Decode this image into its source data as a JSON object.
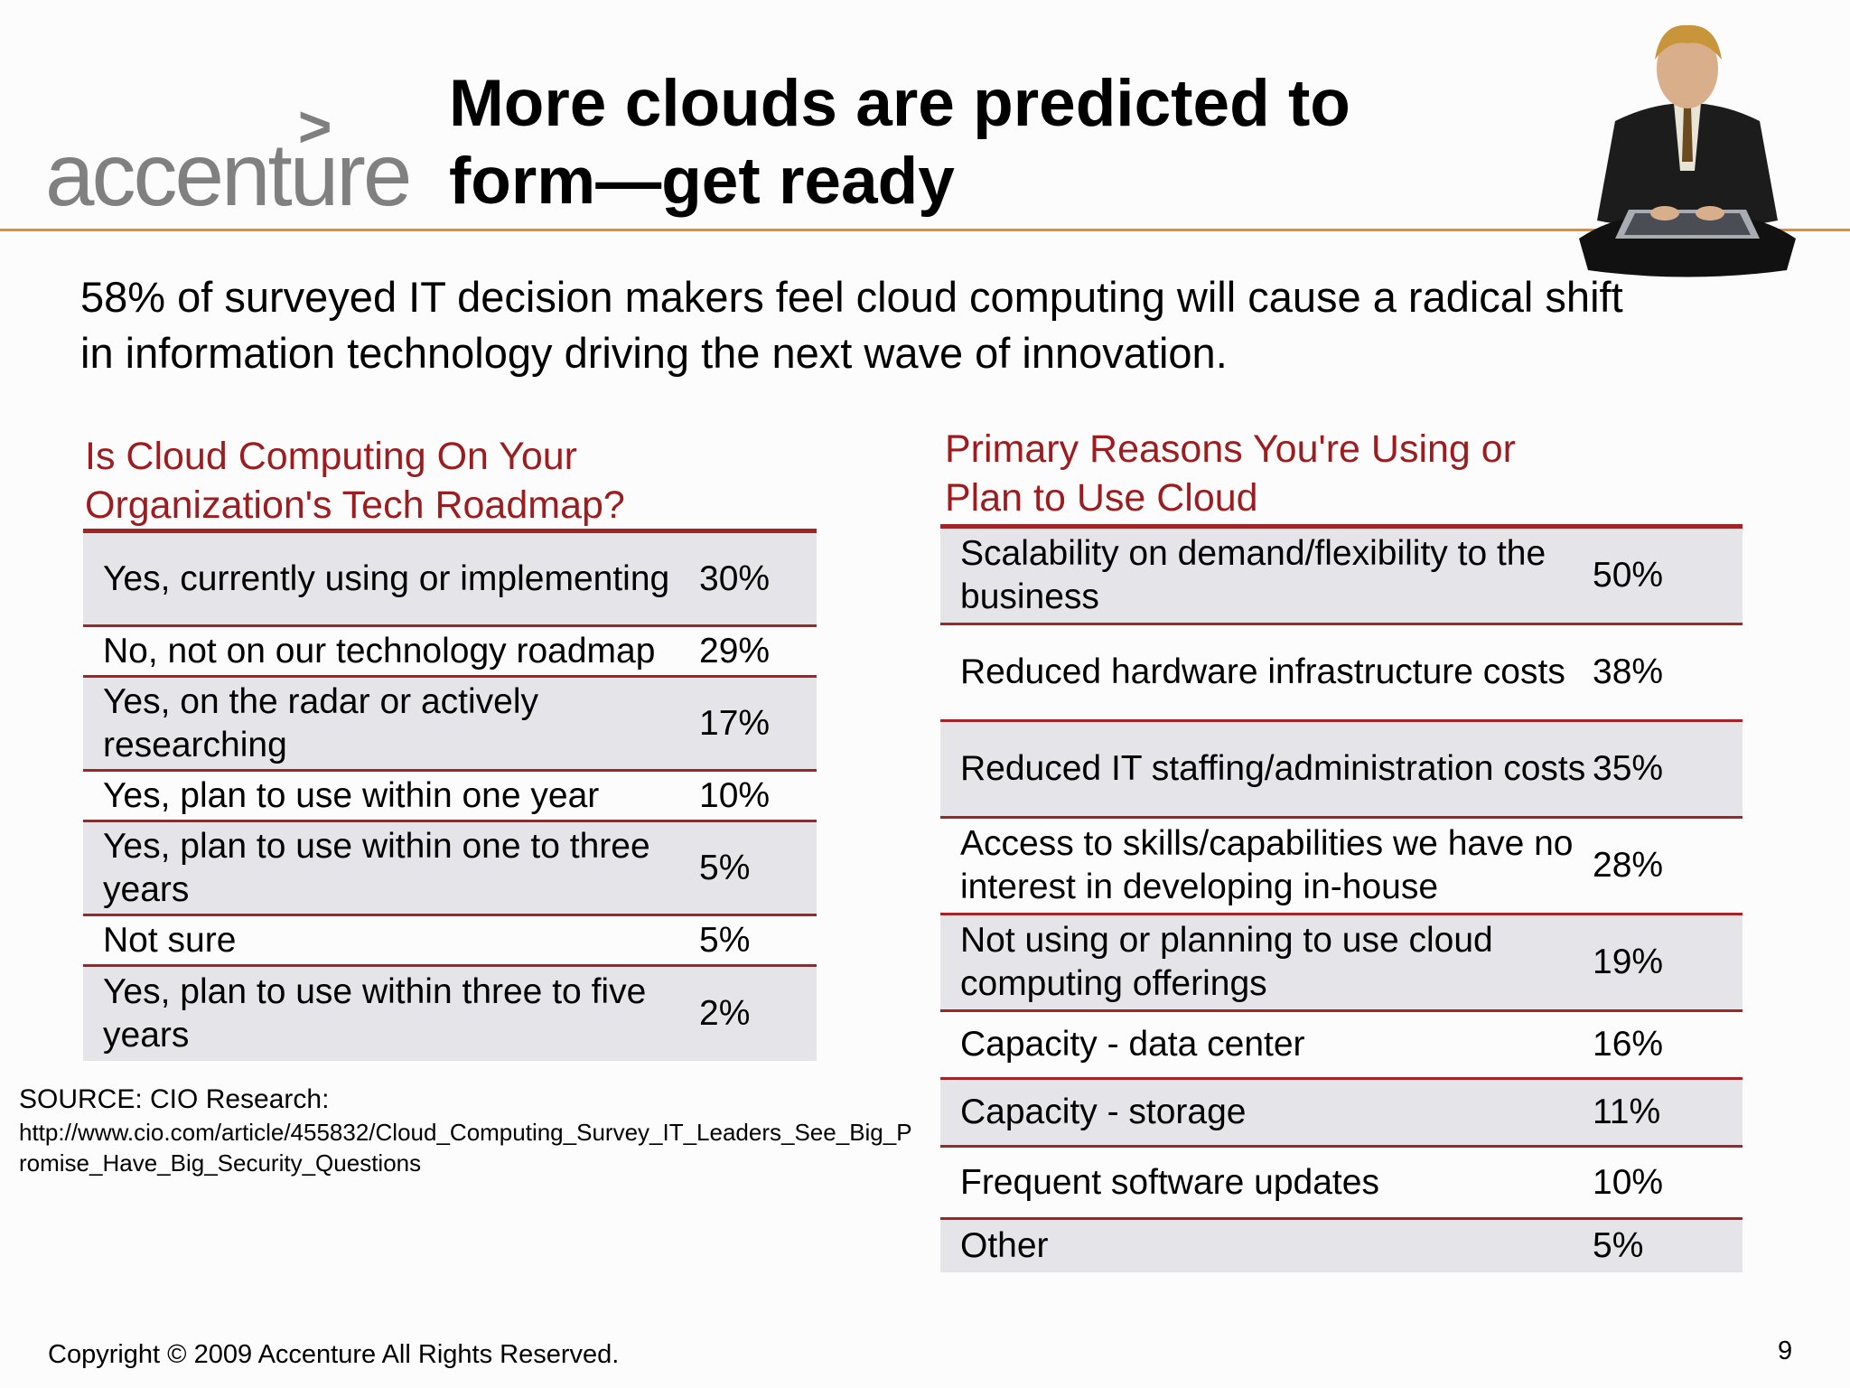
{
  "header": {
    "logo_text": "accenture",
    "logo_mark": ">",
    "title_lines": [
      "More clouds are predicted to",
      "form—get ready"
    ]
  },
  "subtitle_lines": [
    "58% of surveyed IT decision makers feel cloud computing will cause a radical shift",
    "in information technology driving the next wave of innovation."
  ],
  "left_table": {
    "title_lines": [
      "Is Cloud Computing On Your",
      "Organization's Tech Roadmap?"
    ],
    "rows": [
      {
        "label": "Yes, currently using or implementing",
        "value": "30%"
      },
      {
        "label": "No, not on our technology roadmap",
        "value": "29%"
      },
      {
        "label": "Yes, on the radar or actively researching",
        "value": "17%"
      },
      {
        "label": "Yes, plan to use within one year",
        "value": "10%"
      },
      {
        "label": "Yes, plan to use within one to three years",
        "value": "5%"
      },
      {
        "label": "Not sure",
        "value": "5%"
      },
      {
        "label": "Yes, plan to use within three to five years",
        "value": "2%"
      }
    ]
  },
  "right_table": {
    "title_lines": [
      "Primary Reasons You're Using or",
      "Plan to Use Cloud"
    ],
    "rows": [
      {
        "label": "Scalability on demand/flexibility to the business",
        "value": "50%"
      },
      {
        "label": "Reduced hardware infrastructure costs",
        "value": "38%"
      },
      {
        "label": "Reduced IT staffing/administration costs",
        "value": "35%"
      },
      {
        "label": "Access to skills/capabilities we have no interest in developing in-house",
        "value": "28%"
      },
      {
        "label": "Not using or planning to use cloud computing offerings",
        "value": "19%"
      },
      {
        "label": "Capacity - data center",
        "value": "16%"
      },
      {
        "label": "Capacity - storage",
        "value": "11%"
      },
      {
        "label": "Frequent software updates",
        "value": "10%"
      },
      {
        "label": "Other",
        "value": "5%"
      }
    ]
  },
  "source": {
    "title": "SOURCE: CIO Research:",
    "url": "http://www.cio.com/article/455832/Cloud_Computing_Survey_IT_Leaders_See_Big_Promise_Have_Big_Security_Questions"
  },
  "footer": {
    "copyright": "Copyright © 2009 Accenture All Rights Reserved.",
    "page_number": "9"
  }
}
